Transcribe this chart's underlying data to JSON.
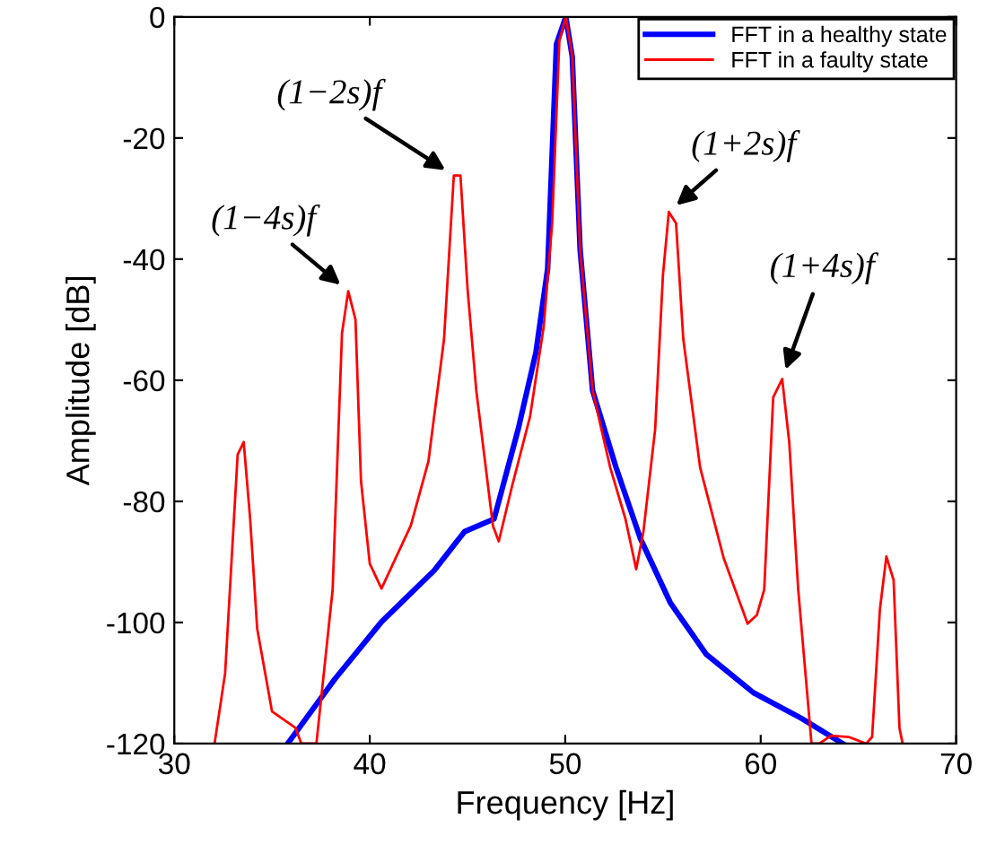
{
  "chart_data": {
    "type": "line",
    "xlabel": "Frequency [Hz]",
    "ylabel": "Amplitude [dB]",
    "xlim": [
      30,
      70
    ],
    "ylim": [
      -120,
      0
    ],
    "xticks": [
      30,
      40,
      50,
      60,
      70
    ],
    "yticks": [
      -120,
      -100,
      -80,
      -60,
      -40,
      -20,
      0
    ],
    "grid": false,
    "legend": "top right",
    "line_style": "solid",
    "marker": "none",
    "series": [
      {
        "name": "FFT in a healthy state",
        "color": "#0000ff",
        "x": [
          35.8,
          38.2,
          40.6,
          43.3,
          44.85,
          46.36,
          47.6,
          48.5,
          49.1,
          49.55,
          50.03,
          50.36,
          50.76,
          51.4,
          52.6,
          53.84,
          55.37,
          57.2,
          59.63,
          62.07,
          64.2
        ],
        "values": [
          -120,
          -109.4,
          -99.9,
          -91.4,
          -85,
          -82.9,
          -68,
          -55.4,
          -41.6,
          -4.5,
          0,
          -6.6,
          -38.4,
          -61.7,
          -74.4,
          -86.1,
          -96.7,
          -105.2,
          -111.6,
          -115.8,
          -120
        ]
      },
      {
        "name": "FFT in a faulty state",
        "color": "#ff0000",
        "x": [
          32.06,
          32.6,
          33.24,
          33.55,
          33.88,
          34.24,
          35.0,
          36.2,
          36.5,
          37.27,
          38.1,
          38.58,
          38.9,
          39.27,
          39.55,
          40.0,
          40.6,
          42.1,
          43.0,
          43.8,
          44.3,
          44.64,
          45.0,
          45.45,
          46.3,
          46.6,
          47.27,
          48.2,
          48.9,
          49.33,
          49.7,
          50.03,
          50.36,
          50.76,
          51.4,
          52.3,
          53.08,
          53.63,
          54.0,
          54.6,
          55.0,
          55.3,
          55.67,
          56.04,
          56.9,
          58.1,
          59.33,
          59.8,
          60.18,
          60.64,
          61.1,
          61.46,
          61.92,
          62.6,
          63.0,
          63.6,
          64.5,
          65.4,
          65.7,
          66.1,
          66.43,
          66.8,
          67.1,
          67.26
        ],
        "values": [
          -120,
          -108.4,
          -72.3,
          -70.2,
          -82.9,
          -101,
          -114.7,
          -117.4,
          -120,
          -120,
          -94.6,
          -52.2,
          -45.3,
          -50,
          -76.6,
          -90.3,
          -94.4,
          -84,
          -73.4,
          -53.2,
          -26.2,
          -26.2,
          -44.8,
          -61.7,
          -84,
          -86.6,
          -77.6,
          -66,
          -51.1,
          -34.1,
          -3.9,
          0,
          -6.6,
          -38.4,
          -61.7,
          -74.4,
          -82.9,
          -91.2,
          -85,
          -68.1,
          -42.6,
          -32.2,
          -34.1,
          -53.2,
          -74.4,
          -89.3,
          -100.2,
          -98.8,
          -94.6,
          -62.8,
          -59.8,
          -70.2,
          -94.6,
          -120,
          -120,
          -118.7,
          -118.9,
          -120,
          -118.9,
          -97.8,
          -89.1,
          -93,
          -117.4,
          -120
        ]
      }
    ],
    "annotations": [
      {
        "text": "(1−4s)f",
        "x": 38.9,
        "y": -45.3
      },
      {
        "text": "(1−2s)f",
        "x": 44.3,
        "y": -26.2
      },
      {
        "text": "(1+2s)f",
        "x": 55.3,
        "y": -32.2
      },
      {
        "text": "(1+4s)f",
        "x": 61.1,
        "y": -59.8
      }
    ]
  }
}
